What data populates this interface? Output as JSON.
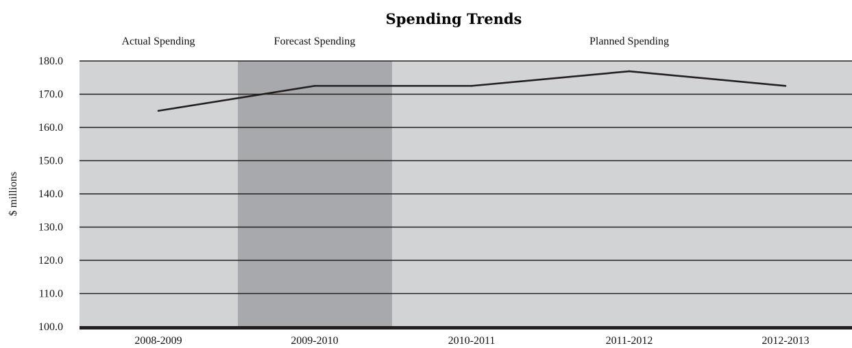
{
  "chart_data": {
    "type": "line",
    "title": "Spending Trends",
    "xlabel": "",
    "ylabel": "$ millions",
    "ylim": [
      100,
      180
    ],
    "y_ticks": [
      "100.0",
      "110.0",
      "120.0",
      "130.0",
      "140.0",
      "150.0",
      "160.0",
      "170.0",
      "180.0"
    ],
    "categories": [
      "2008-2009",
      "2009-2010",
      "2010-2011",
      "2011-2012",
      "2012-2013"
    ],
    "series": [
      {
        "values": [
          165.0,
          172.5,
          172.5,
          176.9,
          172.5
        ]
      }
    ],
    "regions": [
      {
        "label": "Actual Spending",
        "categories": [
          "2008-2009"
        ],
        "shade": "light"
      },
      {
        "label": "Forecast Spending",
        "categories": [
          "2009-2010"
        ],
        "shade": "dark"
      },
      {
        "label": "Planned Spending",
        "categories": [
          "2010-2011",
          "2011-2012",
          "2012-2013"
        ],
        "shade": "light"
      }
    ],
    "grid": true,
    "legend": "none",
    "colors": {
      "light": "#d1d3d4",
      "dark": "#a7a9ac",
      "line": "#231f20",
      "grid": "#231f20"
    }
  }
}
